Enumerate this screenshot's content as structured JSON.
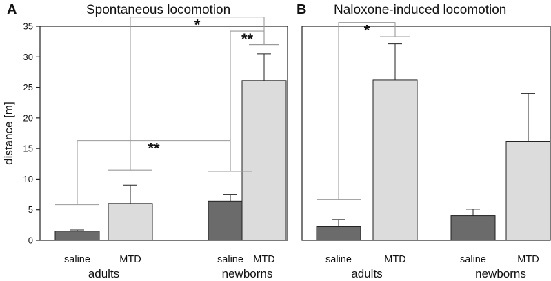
{
  "colors": {
    "saline": "#6b6b6b",
    "mtd": "#dcdcdc",
    "outline": "#222222",
    "bracket": "#9a9a9a"
  },
  "chart_data": [
    {
      "type": "bar",
      "panel": "A",
      "title": "Spontaneous locomotion",
      "ylabel": "distance [m]",
      "ylim": [
        0,
        35
      ],
      "yticks": [
        "0",
        "5",
        "10",
        "15",
        "20",
        "25",
        "30",
        "35"
      ],
      "groups": [
        "adults",
        "newborns"
      ],
      "categories": [
        "saline",
        "MTD",
        "saline",
        "MTD"
      ],
      "values": [
        1.5,
        6.0,
        6.4,
        26.1
      ],
      "errors": [
        0.2,
        3.0,
        1.1,
        4.4
      ],
      "annotations": [
        {
          "label": "**",
          "from": 0,
          "to": 2,
          "left_y": 5.8,
          "right_y": 11.3,
          "top_y": 16.3
        },
        {
          "label": "*",
          "from": 1,
          "to": 3,
          "left_y": 11.5,
          "right_y": 32.0,
          "top_y": 36.5
        },
        {
          "label": "**",
          "from": 2,
          "to": 3,
          "left_y": 11.3,
          "right_y": 32.0,
          "top_y": 34.2
        }
      ]
    },
    {
      "type": "bar",
      "panel": "B",
      "title": "Naloxone-induced locomotion",
      "ylim": [
        0,
        35
      ],
      "groups": [
        "adults",
        "newborns"
      ],
      "categories": [
        "saline",
        "MTD",
        "saline",
        "MTD"
      ],
      "values": [
        2.2,
        26.2,
        4.0,
        16.2
      ],
      "errors": [
        1.2,
        5.9,
        1.1,
        7.8
      ],
      "annotations": [
        {
          "label": "*",
          "from": 0,
          "to": 1,
          "left_y": 6.7,
          "right_y": 33.3,
          "top_y": 35.6
        }
      ]
    }
  ]
}
